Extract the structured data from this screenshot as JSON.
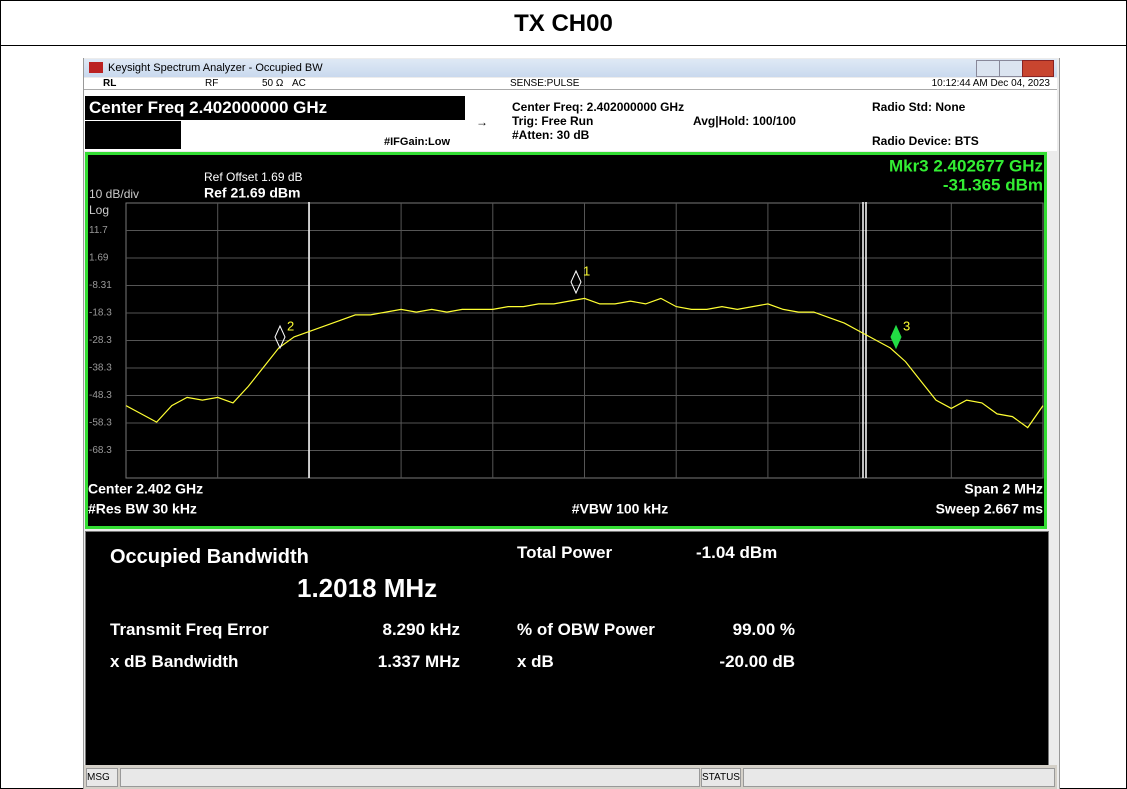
{
  "page_title": "TX CH00",
  "window_title": "Keysight Spectrum Analyzer - Occupied BW",
  "status_row": {
    "rl": "RL",
    "rf": "RF",
    "impedance": "50 Ω",
    "coupling": "AC",
    "sense": "SENSE:PULSE",
    "datetime": "10:12:44 AM Dec 04, 2023"
  },
  "header": {
    "center_freq_box": "Center Freq 2.402000000 GHz",
    "if_gain": "#IFGain:Low",
    "center_freq": "Center Freq: 2.402000000 GHz",
    "trig": "Trig: Free Run",
    "atten": "#Atten: 30 dB",
    "avg_hold": "Avg|Hold: 100/100",
    "radio_std": "Radio Std: None",
    "radio_device": "Radio Device: BTS"
  },
  "graph": {
    "ref_offset": "Ref Offset 1.69 dB",
    "ref_level": "Ref 21.69 dBm",
    "scale": "10 dB/div",
    "scale_type": "Log",
    "marker_readout_freq": "Mkr3  2.402677 GHz",
    "marker_readout_level": "-31.365 dBm",
    "center": "Center  2.402 GHz",
    "res_bw": "#Res BW  30 kHz",
    "vbw": "#VBW  100 kHz",
    "span": "Span 2 MHz",
    "sweep": "Sweep  2.667 ms",
    "ylim": [
      -78.31,
      21.69
    ],
    "yticks": [
      11.7,
      1.69,
      -8.31,
      -18.3,
      -28.3,
      -38.3,
      -48.3,
      -58.3,
      -68.3
    ],
    "trace_color": "#ffff33",
    "trace": [
      -52,
      -55,
      -58,
      -52,
      -49,
      -50,
      -49,
      -51,
      -45,
      -38,
      -31,
      -27,
      -25,
      -23,
      -21,
      -19,
      -19,
      -18,
      -17,
      -18,
      -17,
      -18,
      -17,
      -17,
      -17,
      -16,
      -16,
      -15,
      -15,
      -14,
      -13,
      -15,
      -15,
      -14,
      -15,
      -13,
      -16,
      -17,
      -17,
      -16,
      -17,
      -16,
      -15,
      -17,
      -18,
      -18,
      -20,
      -22,
      -25,
      -28,
      -31,
      -36,
      -43,
      -50,
      -53,
      -50,
      -51,
      -55,
      -56,
      -60,
      -52
    ],
    "markers": [
      {
        "label": "1"
      },
      {
        "label": "2"
      },
      {
        "label": "3"
      }
    ]
  },
  "results": {
    "obw_label": "Occupied Bandwidth",
    "obw_value": "1.2018 MHz",
    "total_power_label": "Total Power",
    "total_power_value": "-1.04 dBm",
    "freq_error_label": "Transmit Freq Error",
    "freq_error_value": "8.290 kHz",
    "obw_power_label": "% of OBW Power",
    "obw_power_value": "99.00 %",
    "xdb_bw_label": "x dB Bandwidth",
    "xdb_bw_value": "1.337 MHz",
    "xdb_label": "x dB",
    "xdb_value": "-20.00 dB"
  },
  "status_bar": {
    "msg": "MSG",
    "status": "STATUS"
  }
}
